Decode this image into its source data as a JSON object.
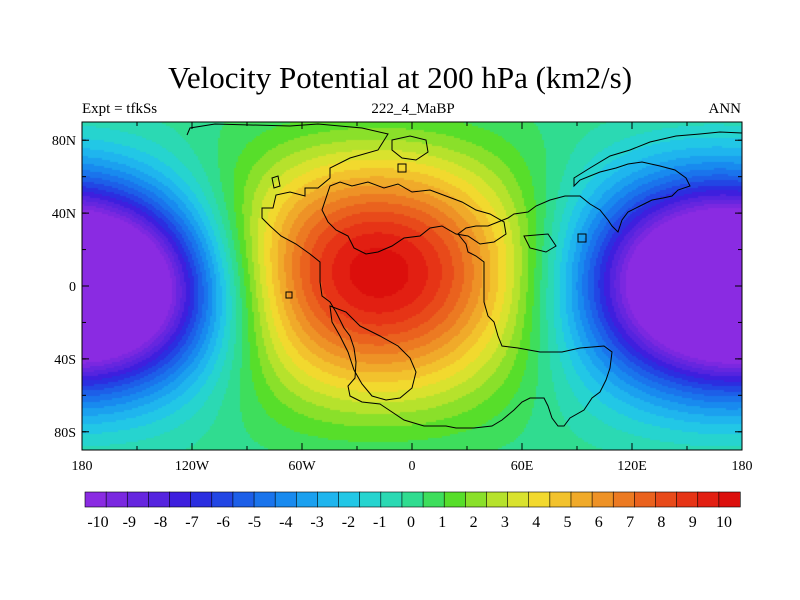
{
  "title": "Velocity Potential at 200 hPa (km2/s)",
  "left_string": "Expt = tfkSs",
  "center_string": "222_4_MaBP",
  "right_string": "ANN",
  "map": {
    "projection": "cylindrical-equidistant",
    "lon_range": [
      -180,
      180
    ],
    "lat_range": [
      -90,
      90
    ],
    "lon_ticks": [
      {
        "value": -180,
        "label": "180"
      },
      {
        "value": -120,
        "label": "120W"
      },
      {
        "value": -60,
        "label": "60W"
      },
      {
        "value": 0,
        "label": "0"
      },
      {
        "value": 60,
        "label": "60E"
      },
      {
        "value": 120,
        "label": "120E"
      },
      {
        "value": 180,
        "label": "180"
      }
    ],
    "lat_ticks": [
      {
        "value": 80,
        "label": "80N"
      },
      {
        "value": 40,
        "label": "40N"
      },
      {
        "value": 0,
        "label": "0"
      },
      {
        "value": -40,
        "label": "40S"
      },
      {
        "value": -80,
        "label": "80S"
      }
    ],
    "field": {
      "variable": "Velocity Potential",
      "min": -10,
      "max": 10,
      "positive_center": {
        "lon": -20,
        "lat": 15,
        "amplitude": 10
      },
      "negative_centers": [
        {
          "lon": 160,
          "lat": 5,
          "amplitude": -10
        },
        {
          "lon": -160,
          "lat": -5,
          "amplitude": -10
        }
      ]
    }
  },
  "colorbar": {
    "labels": [
      "-10",
      "-9",
      "-8",
      "-7",
      "-6",
      "-5",
      "-4",
      "-3",
      "-2",
      "-1",
      "0",
      "1",
      "2",
      "3",
      "4",
      "5",
      "6",
      "7",
      "8",
      "9",
      "10"
    ],
    "colors": [
      "#8a2be2",
      "#7a28e0",
      "#6626df",
      "#5524df",
      "#3e1fde",
      "#2b2ee0",
      "#2246e4",
      "#1d5fe8",
      "#1a74ec",
      "#188aef",
      "#1ba0ef",
      "#1fb5ee",
      "#22c7e6",
      "#26d4cf",
      "#2bd9b3",
      "#30dc90",
      "#3ede5c",
      "#57de2a",
      "#8ae02a",
      "#b6e22c",
      "#d9e22e",
      "#f2d92e",
      "#f2c22d",
      "#f0aa2a",
      "#ee9226",
      "#ec7a22",
      "#ea621e",
      "#e84a1a",
      "#e63416",
      "#e21f12",
      "#dc0f0c"
    ]
  }
}
